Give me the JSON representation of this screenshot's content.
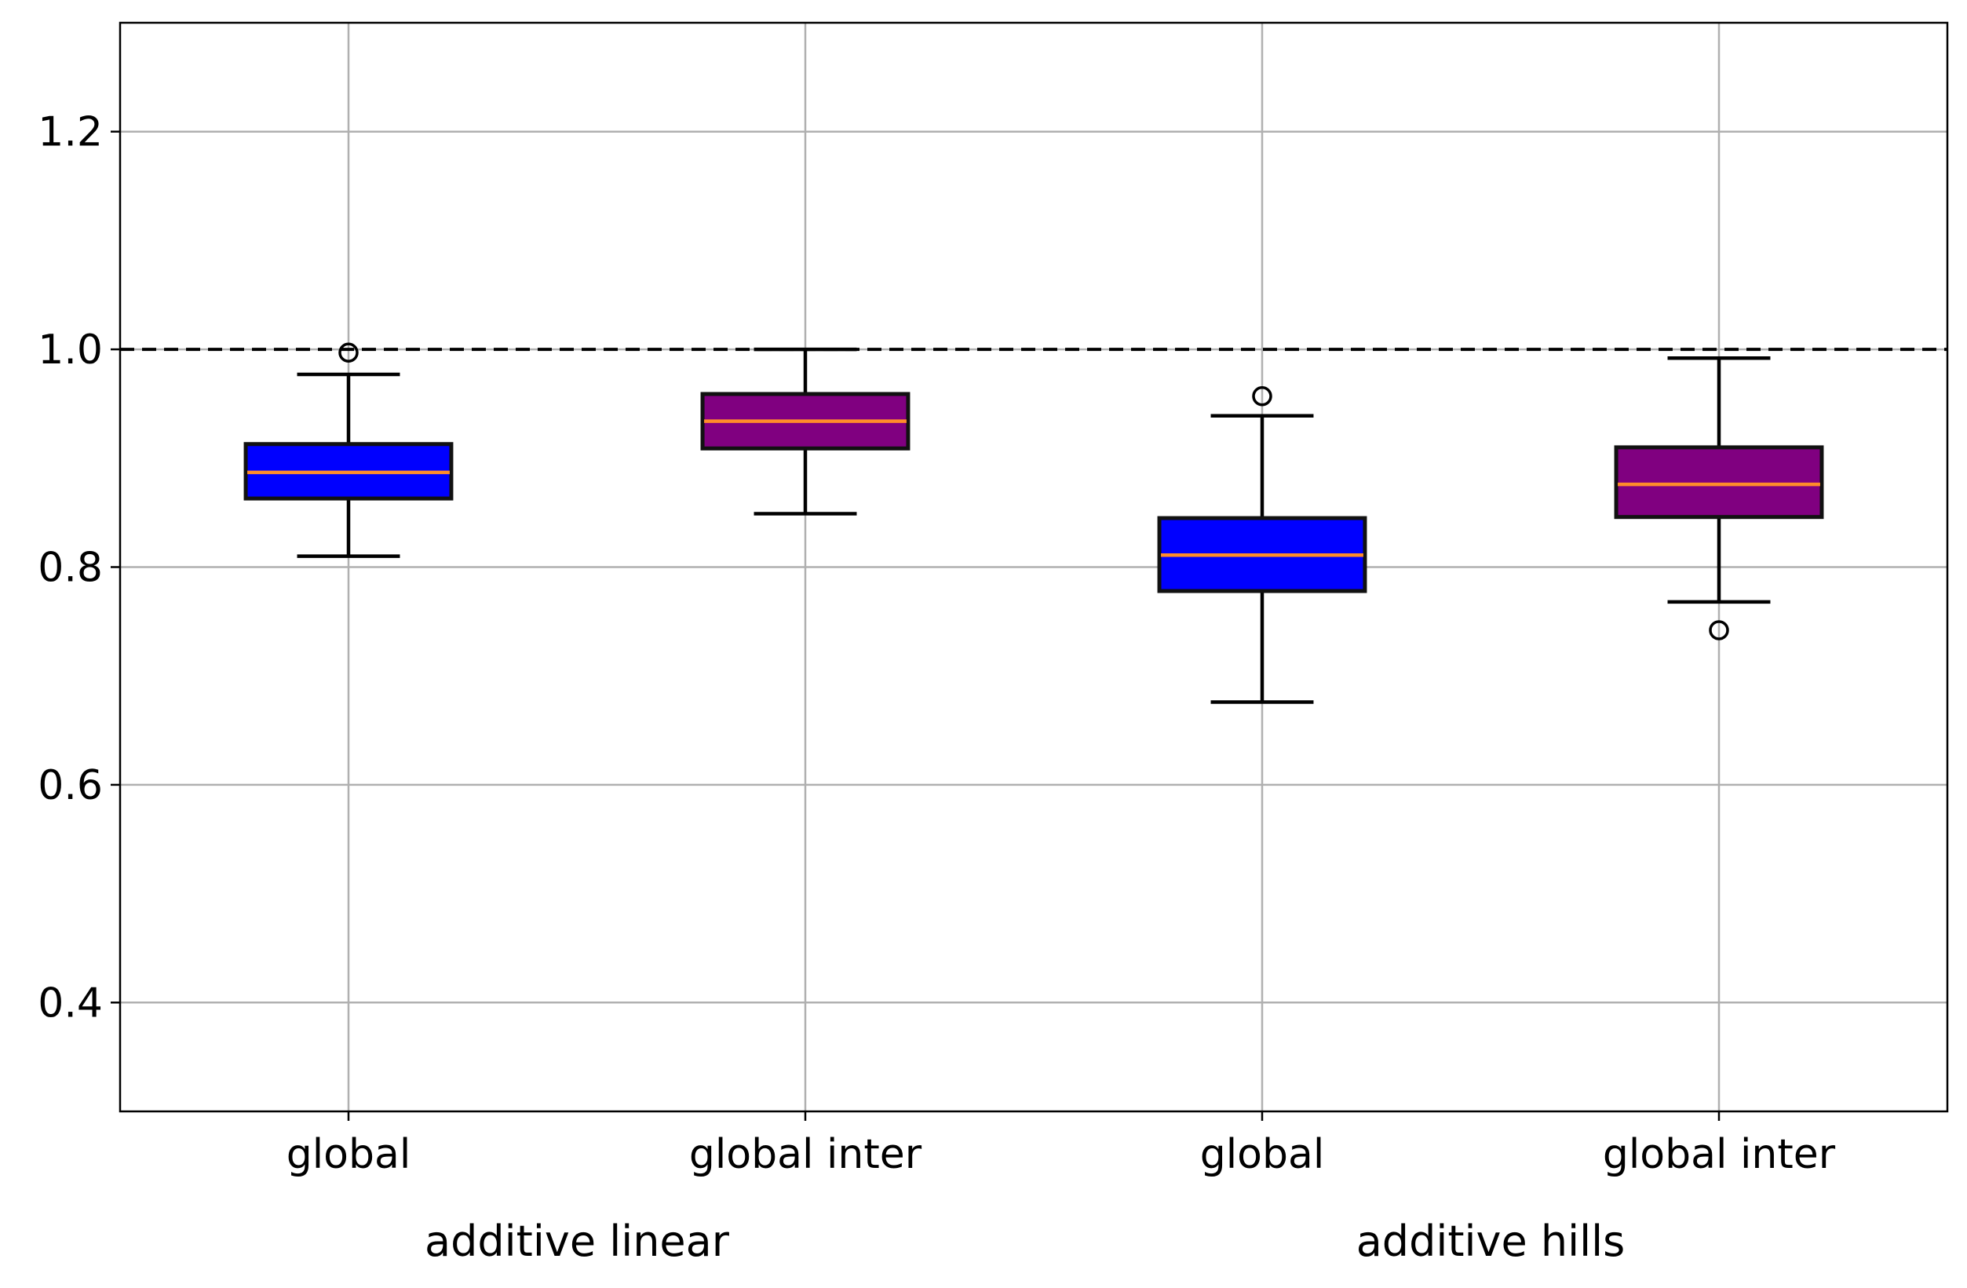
{
  "chart_data": {
    "type": "box",
    "title": "",
    "xlabel": "",
    "ylabel": "",
    "ylim": [
      0.3,
      1.3
    ],
    "y_ticks": [
      0.4,
      0.6,
      0.8,
      1.0,
      1.2
    ],
    "y_tick_labels": [
      "0.4",
      "0.6",
      "0.8",
      "1.0",
      "1.2"
    ],
    "grid": true,
    "reference_line": {
      "y": 1.0,
      "style": "dashed",
      "color": "#000000"
    },
    "median_color": "#ff8c2a",
    "boxes": [
      {
        "label": "global",
        "group": "additive linear",
        "color": "#0000ff",
        "whisker_low": 0.81,
        "q1": 0.863,
        "median": 0.887,
        "q3": 0.913,
        "whisker_high": 0.977,
        "fliers": [
          0.997
        ]
      },
      {
        "label": "global inter",
        "group": "additive linear",
        "color": "#800080",
        "whisker_low": 0.849,
        "q1": 0.909,
        "median": 0.934,
        "q3": 0.959,
        "whisker_high": 1.0,
        "fliers": []
      },
      {
        "label": "global",
        "group": "additive hills",
        "color": "#0000ff",
        "whisker_low": 0.676,
        "q1": 0.778,
        "median": 0.811,
        "q3": 0.845,
        "whisker_high": 0.939,
        "fliers": [
          0.957
        ]
      },
      {
        "label": "global inter",
        "group": "additive hills",
        "color": "#800080",
        "whisker_low": 0.768,
        "q1": 0.846,
        "median": 0.876,
        "q3": 0.91,
        "whisker_high": 0.992,
        "fliers": [
          0.742
        ]
      }
    ],
    "groups": [
      "additive linear",
      "additive hills"
    ]
  }
}
